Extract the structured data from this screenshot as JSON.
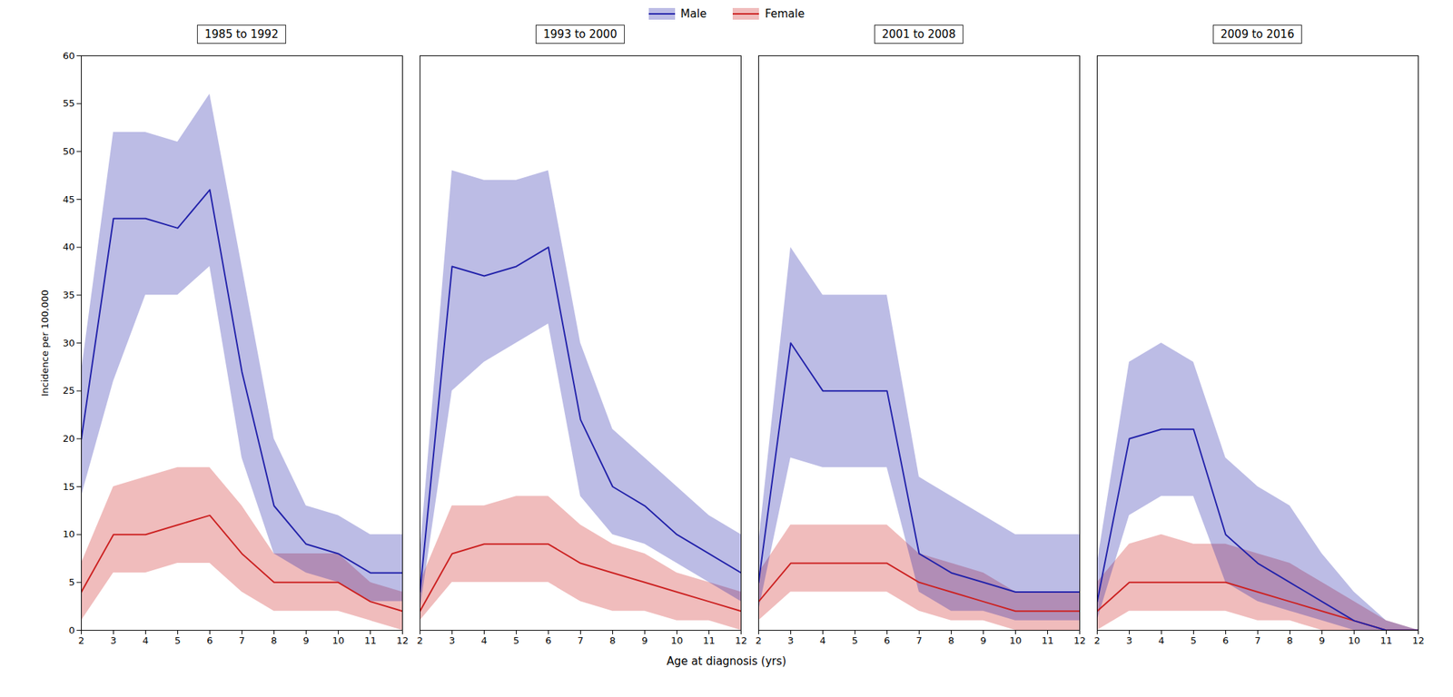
{
  "chart_data": [
    {
      "type": "line",
      "title": "1985 to 1992",
      "xlabel": "Age at diagnosis (yrs)",
      "ylabel": "Incidence per 100,000",
      "legend": "top",
      "grid": false,
      "x": [
        2,
        3,
        4,
        5,
        6,
        7,
        8,
        9,
        10,
        11,
        12
      ],
      "xlim": [
        2,
        12
      ],
      "xticks": [
        2,
        3,
        4,
        5,
        6,
        7,
        8,
        9,
        10,
        11,
        12
      ],
      "ylim": [
        0,
        60
      ],
      "yticks": [
        0,
        5,
        10,
        15,
        20,
        25,
        30,
        35,
        40,
        45,
        50,
        55,
        60
      ],
      "series": [
        {
          "name": "Male",
          "color": "#2222aa",
          "values": [
            20,
            43,
            43,
            42,
            46,
            27,
            13,
            9,
            8,
            6,
            6
          ],
          "ci_lo": [
            14,
            26,
            35,
            35,
            38,
            18,
            8,
            6,
            5,
            3,
            3
          ],
          "ci_hi": [
            27,
            52,
            52,
            51,
            56,
            38,
            20,
            13,
            12,
            10,
            10
          ]
        },
        {
          "name": "Female",
          "color": "#cc2222",
          "values": [
            4,
            10,
            10,
            11,
            12,
            8,
            5,
            5,
            5,
            3,
            2
          ],
          "ci_lo": [
            1,
            6,
            6,
            7,
            7,
            4,
            2,
            2,
            2,
            1,
            0
          ],
          "ci_hi": [
            7,
            15,
            16,
            17,
            17,
            13,
            8,
            8,
            8,
            5,
            4
          ]
        }
      ]
    },
    {
      "type": "line",
      "title": "1993 to 2000",
      "tick_labels": "x",
      "grid": false,
      "x": [
        2,
        3,
        4,
        5,
        6,
        7,
        8,
        9,
        10,
        11,
        12
      ],
      "xlim": [
        2,
        12
      ],
      "xticks": [
        2,
        3,
        4,
        5,
        6,
        7,
        8,
        9,
        10,
        11,
        12
      ],
      "ylim": [
        0,
        60
      ],
      "yticks": [
        0,
        5,
        10,
        15,
        20,
        25,
        30,
        35,
        40,
        45,
        50,
        55,
        60
      ],
      "series": [
        {
          "name": "Male",
          "color": "#2222aa",
          "values": [
            4,
            38,
            37,
            38,
            40,
            22,
            15,
            13,
            10,
            8,
            6
          ],
          "ci_lo": [
            2,
            25,
            28,
            30,
            32,
            14,
            10,
            9,
            7,
            5,
            3
          ],
          "ci_hi": [
            8,
            48,
            47,
            47,
            48,
            30,
            21,
            18,
            15,
            12,
            10
          ]
        },
        {
          "name": "Female",
          "color": "#cc2222",
          "values": [
            2,
            8,
            9,
            9,
            9,
            7,
            6,
            5,
            4,
            3,
            2
          ],
          "ci_lo": [
            1,
            5,
            5,
            5,
            5,
            3,
            2,
            2,
            1,
            1,
            0
          ],
          "ci_hi": [
            5,
            13,
            13,
            14,
            14,
            11,
            9,
            8,
            6,
            5,
            4
          ]
        }
      ]
    },
    {
      "type": "line",
      "title": "2001 to 2008",
      "tick_labels": "x",
      "grid": false,
      "x": [
        2,
        3,
        4,
        5,
        6,
        7,
        8,
        9,
        10,
        11,
        12
      ],
      "xlim": [
        2,
        12
      ],
      "xticks": [
        2,
        3,
        4,
        5,
        6,
        7,
        8,
        9,
        10,
        11,
        12
      ],
      "ylim": [
        0,
        60
      ],
      "yticks": [
        0,
        5,
        10,
        15,
        20,
        25,
        30,
        35,
        40,
        45,
        50,
        55,
        60
      ],
      "series": [
        {
          "name": "Male",
          "color": "#2222aa",
          "values": [
            5,
            30,
            25,
            25,
            25,
            8,
            6,
            5,
            4,
            4,
            4
          ],
          "ci_lo": [
            2,
            18,
            17,
            17,
            17,
            4,
            2,
            2,
            1,
            1,
            1
          ],
          "ci_hi": [
            9,
            40,
            35,
            35,
            35,
            16,
            14,
            12,
            10,
            10,
            10
          ]
        },
        {
          "name": "Female",
          "color": "#cc2222",
          "values": [
            3,
            7,
            7,
            7,
            7,
            5,
            4,
            3,
            2,
            2,
            2
          ],
          "ci_lo": [
            1,
            4,
            4,
            4,
            4,
            2,
            1,
            1,
            0,
            0,
            0
          ],
          "ci_hi": [
            6,
            11,
            11,
            11,
            11,
            8,
            7,
            6,
            4,
            4,
            4
          ]
        }
      ]
    },
    {
      "type": "line",
      "title": "2009 to 2016",
      "tick_labels": "x",
      "grid": false,
      "x": [
        2,
        3,
        4,
        5,
        6,
        7,
        8,
        9,
        10,
        11,
        12
      ],
      "xlim": [
        2,
        12
      ],
      "xticks": [
        2,
        3,
        4,
        5,
        6,
        7,
        8,
        9,
        10,
        11,
        12
      ],
      "ylim": [
        0,
        60
      ],
      "yticks": [
        0,
        5,
        10,
        15,
        20,
        25,
        30,
        35,
        40,
        45,
        50,
        55,
        60
      ],
      "series": [
        {
          "name": "Male",
          "color": "#2222aa",
          "values": [
            3,
            20,
            21,
            21,
            10,
            7,
            5,
            3,
            1,
            0,
            0
          ],
          "ci_lo": [
            1,
            12,
            14,
            14,
            5,
            3,
            2,
            1,
            0,
            0,
            0
          ],
          "ci_hi": [
            7,
            28,
            30,
            28,
            18,
            15,
            13,
            8,
            4,
            1,
            0
          ]
        },
        {
          "name": "Female",
          "color": "#cc2222",
          "values": [
            2,
            5,
            5,
            5,
            5,
            4,
            3,
            2,
            1,
            0,
            0
          ],
          "ci_lo": [
            0,
            2,
            2,
            2,
            2,
            1,
            1,
            0,
            0,
            0,
            0
          ],
          "ci_hi": [
            5,
            9,
            10,
            9,
            9,
            8,
            7,
            5,
            3,
            1,
            0
          ]
        }
      ]
    }
  ]
}
